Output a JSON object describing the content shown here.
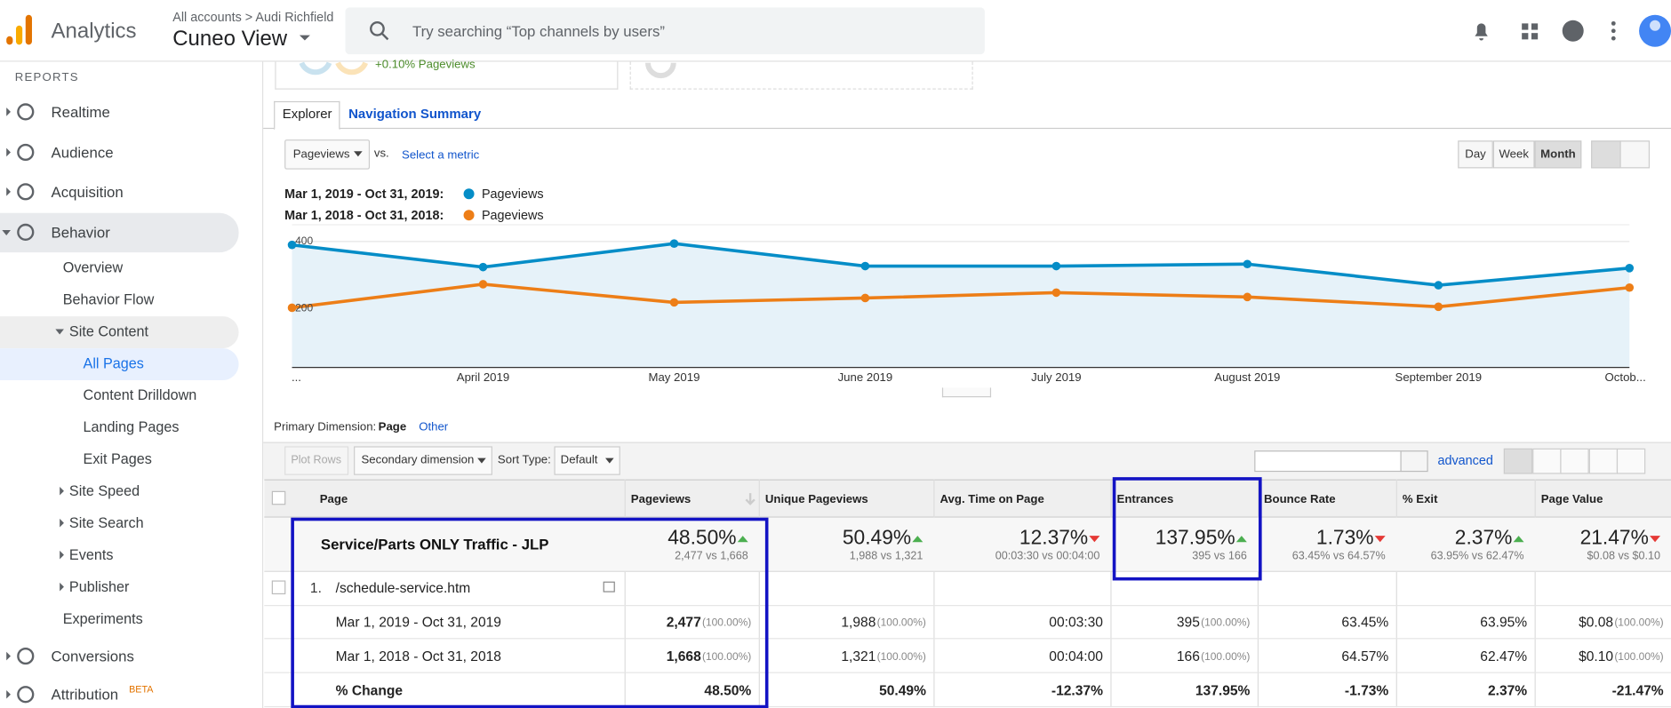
{
  "header": {
    "app": "Analytics",
    "breadcrumb": "All accounts > Audi Richfield",
    "view": "Cuneo View",
    "search_placeholder": "Try searching “Top channels by users”"
  },
  "sidebar": {
    "section": "REPORTS",
    "items": [
      "Realtime",
      "Audience",
      "Acquisition",
      "Behavior",
      "Overview",
      "Behavior Flow",
      "Site Content",
      "All Pages",
      "Content Drilldown",
      "Landing Pages",
      "Exit Pages",
      "Site Speed",
      "Site Search",
      "Events",
      "Publisher",
      "Experiments",
      "Conversions",
      "Attribution"
    ],
    "beta": "BETA"
  },
  "scorecard_fragment": "+0.10% Pageviews",
  "tabs": [
    "Explorer",
    "Navigation Summary"
  ],
  "controls": {
    "metric": "Pageviews",
    "vs": "vs.",
    "select_metric": "Select a metric",
    "periods": [
      "Day",
      "Week",
      "Month"
    ]
  },
  "chart_data": {
    "type": "line",
    "categories": [
      "...",
      "April 2019",
      "May 2019",
      "June 2019",
      "July 2019",
      "August 2019",
      "September 2019",
      "Octob..."
    ],
    "series": [
      {
        "name": "Pageviews",
        "period": "Mar 1, 2019 - Oct 31, 2019:",
        "color": "#058dc7",
        "values": [
          390,
          324,
          394,
          327,
          327,
          333,
          270,
          321
        ]
      },
      {
        "name": "Pageviews",
        "period": "Mar 1, 2018 - Oct 31, 2018:",
        "color": "#ed7e17",
        "values": [
          203,
          273,
          219,
          232,
          248,
          235,
          206,
          263
        ]
      }
    ],
    "ylim": [
      0,
      450
    ],
    "yticks": [
      200,
      400
    ],
    "grid": true
  },
  "table_controls": {
    "primary_label": "Primary Dimension:",
    "primary_value": "Page",
    "other": "Other",
    "plot_rows": "Plot Rows",
    "secondary": "Secondary dimension",
    "sort_label": "Sort Type:",
    "sort_value": "Default",
    "advanced": "advanced"
  },
  "table": {
    "columns": [
      "Page",
      "Pageviews",
      "Unique Pageviews",
      "Avg. Time on Page",
      "Entrances",
      "Bounce Rate",
      "% Exit",
      "Page Value"
    ],
    "summary": {
      "label": "Service/Parts ONLY Traffic - JLP",
      "cells": [
        {
          "value": "48.50%",
          "detail": "2,477 vs 1,668",
          "trend": "up"
        },
        {
          "value": "50.49%",
          "detail": "1,988 vs 1,321",
          "trend": "up"
        },
        {
          "value": "12.37%",
          "detail": "00:03:30 vs 00:04:00",
          "trend": "down"
        },
        {
          "value": "137.95%",
          "detail": "395 vs 166",
          "trend": "up"
        },
        {
          "value": "1.73%",
          "detail": "63.45% vs 64.57%",
          "trend": "down"
        },
        {
          "value": "2.37%",
          "detail": "63.95% vs 62.47%",
          "trend": "up"
        },
        {
          "value": "21.47%",
          "detail": "$0.08 vs $0.10",
          "trend": "down"
        }
      ]
    },
    "row": {
      "index": "1.",
      "page": "/schedule-service.htm"
    },
    "subrows": [
      {
        "label": "Mar 1, 2019 - Oct 31, 2019",
        "cells": [
          {
            "value": "2,477",
            "share": "(100.00%)"
          },
          {
            "value": "1,988",
            "share": "(100.00%)"
          },
          {
            "value": "00:03:30"
          },
          {
            "value": "395",
            "share": "(100.00%)"
          },
          {
            "value": "63.45%"
          },
          {
            "value": "63.95%"
          },
          {
            "value": "$0.08",
            "share": "(100.00%)"
          }
        ]
      },
      {
        "label": "Mar 1, 2018 - Oct 31, 2018",
        "cells": [
          {
            "value": "1,668",
            "share": "(100.00%)"
          },
          {
            "value": "1,321",
            "share": "(100.00%)"
          },
          {
            "value": "00:04:00"
          },
          {
            "value": "166",
            "share": "(100.00%)"
          },
          {
            "value": "64.57%"
          },
          {
            "value": "62.47%"
          },
          {
            "value": "$0.10",
            "share": "(100.00%)"
          }
        ]
      },
      {
        "label": "% Change",
        "cells": [
          {
            "value": "48.50%"
          },
          {
            "value": "50.49%"
          },
          {
            "value": "-12.37%"
          },
          {
            "value": "137.95%"
          },
          {
            "value": "-1.73%"
          },
          {
            "value": "2.37%"
          },
          {
            "value": "-21.47%"
          }
        ]
      }
    ]
  }
}
